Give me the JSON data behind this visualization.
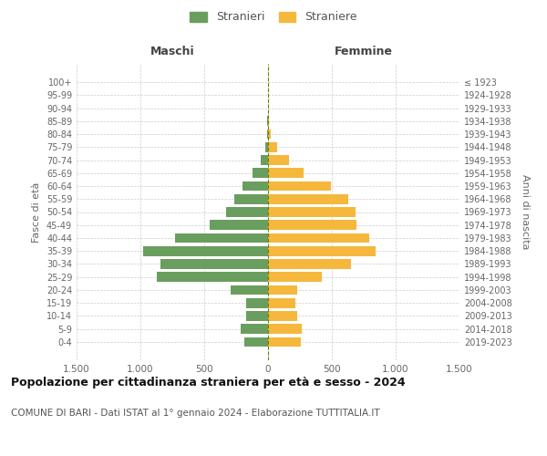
{
  "age_groups": [
    "0-4",
    "5-9",
    "10-14",
    "15-19",
    "20-24",
    "25-29",
    "30-34",
    "35-39",
    "40-44",
    "45-49",
    "50-54",
    "55-59",
    "60-64",
    "65-69",
    "70-74",
    "75-79",
    "80-84",
    "85-89",
    "90-94",
    "95-99",
    "100+"
  ],
  "birth_years": [
    "2019-2023",
    "2014-2018",
    "2009-2013",
    "2004-2008",
    "1999-2003",
    "1994-1998",
    "1989-1993",
    "1984-1988",
    "1979-1983",
    "1974-1978",
    "1969-1973",
    "1964-1968",
    "1959-1963",
    "1954-1958",
    "1949-1953",
    "1944-1948",
    "1939-1943",
    "1934-1938",
    "1929-1933",
    "1924-1928",
    "≤ 1923"
  ],
  "males": [
    185,
    215,
    175,
    170,
    290,
    870,
    840,
    980,
    730,
    460,
    330,
    265,
    200,
    120,
    60,
    25,
    8,
    4,
    2,
    1,
    1
  ],
  "females": [
    260,
    265,
    230,
    215,
    225,
    420,
    650,
    840,
    790,
    690,
    685,
    625,
    490,
    280,
    165,
    70,
    18,
    6,
    2,
    1,
    1
  ],
  "male_color": "#6a9e5e",
  "female_color": "#f5b83d",
  "dashed_line_color": "#7a7a00",
  "background_color": "#ffffff",
  "grid_color": "#cccccc",
  "title": "Popolazione per cittadinanza straniera per età e sesso - 2024",
  "subtitle": "COMUNE DI BARI - Dati ISTAT al 1° gennaio 2024 - Elaborazione TUTTITALIA.IT",
  "ylabel_left": "Fasce di età",
  "ylabel_right": "Anni di nascita",
  "header_left": "Maschi",
  "header_right": "Femmine",
  "legend_male": "Stranieri",
  "legend_female": "Straniere",
  "xlim": 1500,
  "xtick_labels": [
    "1.500",
    "1.000",
    "500",
    "0",
    "500",
    "1.000",
    "1.500"
  ]
}
